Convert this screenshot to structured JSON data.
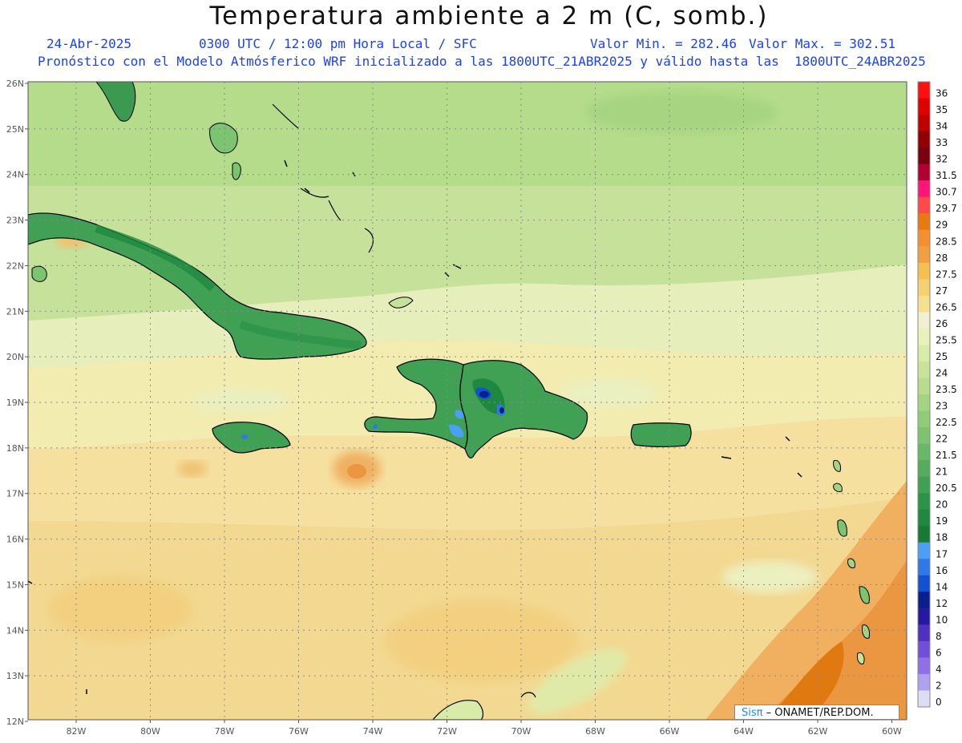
{
  "title": "Temperatura ambiente a 2 m (C, somb.)",
  "subtitle": {
    "date": "24-Abr-2025",
    "time": "0300 UTC / 12:00 pm Hora Local / SFC",
    "min": "Valor Min. = 282.46",
    "max": "Valor Max. = 302.51",
    "forecast": "Pronóstico con el Modelo Atmósferico WRF inicializado a las 1800UTC_21ABR2025 y válido hasta las  1800UTC_24ABR2025"
  },
  "lat_labels": [
    "26N",
    "25N",
    "24N",
    "23N",
    "22N",
    "21N",
    "20N",
    "19N",
    "18N",
    "17N",
    "16N",
    "15N",
    "14N",
    "13N",
    "12N"
  ],
  "lon_labels": [
    "82W",
    "80W",
    "78W",
    "76W",
    "74W",
    "72W",
    "70W",
    "68W",
    "66W",
    "64W",
    "62W",
    "60W"
  ],
  "colorbar": {
    "labels": [
      "36",
      "35",
      "34",
      "33",
      "32",
      "31.5",
      "30.7",
      "29.7",
      "29",
      "28.5",
      "28",
      "27.5",
      "27",
      "26.5",
      "26",
      "25.5",
      "25",
      "24",
      "23.5",
      "23",
      "22.5",
      "22",
      "21.5",
      "21",
      "20.5",
      "20",
      "19",
      "18",
      "17",
      "16",
      "14",
      "12",
      "10",
      "8",
      "6",
      "4",
      "2",
      "0"
    ],
    "colors": [
      "#ff1010",
      "#e00000",
      "#c00000",
      "#900000",
      "#780010",
      "#b00030",
      "#ff1478",
      "#ff4a4a",
      "#e87a10",
      "#f09030",
      "#f0a040",
      "#f5c050",
      "#f5d070",
      "#f5e090",
      "#f2f0d0",
      "#e8f2b8",
      "#d8ecaa",
      "#c8e49a",
      "#b8dc8c",
      "#a4d482",
      "#90cc78",
      "#7cc470",
      "#68b868",
      "#54ac5c",
      "#40a054",
      "#2c9448",
      "#1f8840",
      "#197a38",
      "#4aa0f5",
      "#3078e6",
      "#1450d2",
      "#0a1e8c",
      "#2818a0",
      "#5030c0",
      "#7050d8",
      "#9070e6",
      "#b0a0f0",
      "#dcdcf5"
    ]
  },
  "credit": {
    "brand": "Sisπ",
    "org": " – ONAMET/REP.DOM."
  }
}
